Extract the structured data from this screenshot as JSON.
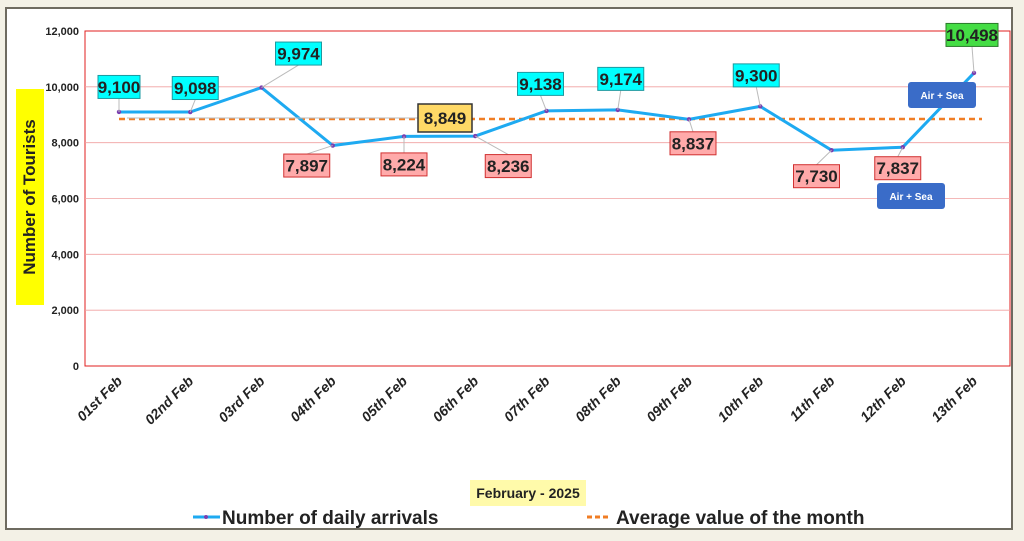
{
  "chart_data": {
    "type": "line",
    "categories": [
      "01st Feb",
      "02nd Feb",
      "03rd Feb",
      "04th Feb",
      "05th Feb",
      "06th Feb",
      "07th Feb",
      "08th Feb",
      "09th Feb",
      "10th Feb",
      "11th Feb",
      "12th Feb",
      "13th Feb"
    ],
    "series": [
      {
        "name": "Number of daily arrivals",
        "values": [
          9100,
          9098,
          9974,
          7897,
          8224,
          8236,
          9138,
          9174,
          8837,
          9300,
          7730,
          7837,
          10498
        ],
        "color": "#1eaaf1"
      },
      {
        "name": "Average value of the month",
        "values": [
          8849,
          8849,
          8849,
          8849,
          8849,
          8849,
          8849,
          8849,
          8849,
          8849,
          8849,
          8849,
          8849
        ],
        "color": "#f07d24"
      }
    ],
    "data_labels": [
      "9,100",
      "9,098",
      "9,974",
      "7,897",
      "8,224",
      "8,236",
      "9,138",
      "9,174",
      "8,837",
      "9,300",
      "7,730",
      "7,837",
      "10,498"
    ],
    "average_label": "8,849",
    "ylabel": "Number of Tourists",
    "xlabel": "February - 2025",
    "ylim": [
      0,
      12000
    ],
    "yticks": [
      0,
      2000,
      4000,
      6000,
      8000,
      10000,
      12000
    ],
    "ytick_labels": [
      "0",
      "2,000",
      "4,000",
      "6,000",
      "8,000",
      "10,000",
      "12,000"
    ],
    "grid": true,
    "legend": "bottom",
    "annotations": [
      "Air + Sea",
      "Air + Sea"
    ],
    "label_colors": {
      "above_average": "#00ffff",
      "below_average": "#ffaaaa",
      "average": "#ffd966",
      "maximum": "#44dd44"
    }
  }
}
